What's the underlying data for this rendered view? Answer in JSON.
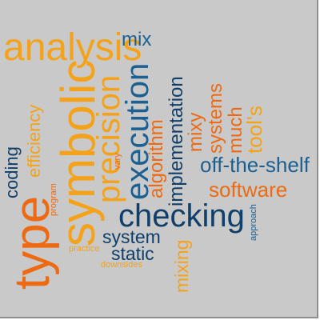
{
  "colors": {
    "background": "#c9c9c9",
    "dark_blue": "#0f3f6a",
    "teal_blue": "#1c5f91",
    "light_blue": "#2c76b5",
    "orange": "#ee6a12",
    "amber": "#f3a21a"
  },
  "words": {
    "analysis": "analysis",
    "mix": "mix",
    "efficiency": "efficiency",
    "symbolic": "symbolic",
    "type": "type",
    "precision": "precision",
    "execution": "execution",
    "implementation": "implementation",
    "mixy": "mixy",
    "systems": "systems",
    "much": "much",
    "tools": "tool's",
    "coding": "coding",
    "program": "program",
    "vary": "vary",
    "algorithm": "algorithm",
    "off_the_shelf": "off-the-shelf",
    "software": "software",
    "checking": "checking",
    "system": "system",
    "static": "static",
    "approach": "approach",
    "practice": "practice",
    "downsides": "downsides",
    "mixing": "mixing"
  }
}
